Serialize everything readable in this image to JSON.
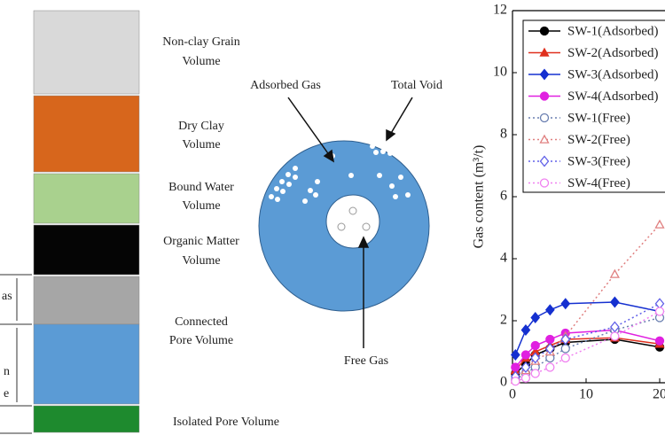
{
  "diagram": {
    "volumes": [
      [
        "Non-clay Grain",
        "Volume"
      ],
      [
        "Dry Clay",
        "Volume"
      ],
      [
        "Bound Water",
        "Volume"
      ],
      [
        "Organic Matter",
        "Volume"
      ],
      [
        "Connected",
        "Pore Volume"
      ],
      [
        "Isolated Pore Volume"
      ]
    ],
    "side_labels": [
      "as",
      "n",
      "e"
    ]
  },
  "pore_diagram": {
    "adsorbed_gas": "Adsorbed Gas",
    "total_void": "Total Void",
    "free_gas": "Free Gas"
  },
  "chart_data": {
    "type": "line",
    "y_label": "Gas content (m³/t)",
    "x": [
      0.4,
      1.8,
      3.1,
      5.1,
      7.2,
      13.9,
      20
    ],
    "xlim": [
      0,
      20
    ],
    "xticks": [
      0,
      10,
      20
    ],
    "ylim": [
      0,
      12
    ],
    "yticks": [
      0,
      2,
      4,
      6,
      8,
      10,
      12
    ],
    "legend": "top-right",
    "series": [
      {
        "name": "SW-1(Adsorbed)",
        "color": "#000000",
        "marker": "circle",
        "filled": true,
        "linestyle": "solid",
        "values": [
          0.3,
          0.6,
          0.9,
          1.1,
          1.3,
          1.4,
          1.15
        ]
      },
      {
        "name": "SW-2(Adsorbed)",
        "color": "#e0301e",
        "marker": "triangle",
        "filled": true,
        "linestyle": "solid",
        "values": [
          0.4,
          0.8,
          1.0,
          1.2,
          1.4,
          1.45,
          1.25
        ]
      },
      {
        "name": "SW-3(Adsorbed)",
        "color": "#1530d0",
        "marker": "diamond",
        "filled": true,
        "linestyle": "solid",
        "values": [
          0.9,
          1.7,
          2.1,
          2.35,
          2.55,
          2.6,
          2.3
        ]
      },
      {
        "name": "SW-4(Adsorbed)",
        "color": "#e020e0",
        "marker": "circle",
        "filled": true,
        "linestyle": "solid",
        "values": [
          0.5,
          0.9,
          1.2,
          1.4,
          1.6,
          1.7,
          1.35
        ]
      },
      {
        "name": "SW-1(Free)",
        "color": "#6a7fb0",
        "marker": "circle",
        "filled": false,
        "linestyle": "dotted",
        "values": [
          0.1,
          0.3,
          0.5,
          0.8,
          1.1,
          1.7,
          2.1
        ]
      },
      {
        "name": "SW-2(Free)",
        "color": "#e08080",
        "marker": "triangle",
        "filled": false,
        "linestyle": "dotted",
        "values": [
          0.1,
          0.4,
          0.7,
          1.0,
          1.5,
          3.5,
          5.1
        ]
      },
      {
        "name": "SW-3(Free)",
        "color": "#6060e8",
        "marker": "diamond",
        "filled": false,
        "linestyle": "dotted",
        "values": [
          0.2,
          0.5,
          0.8,
          1.1,
          1.4,
          1.8,
          2.55
        ]
      },
      {
        "name": "SW-4(Free)",
        "color": "#f080f0",
        "marker": "circle",
        "filled": false,
        "linestyle": "dotted",
        "values": [
          0.05,
          0.15,
          0.3,
          0.5,
          0.8,
          1.5,
          2.3
        ]
      }
    ]
  }
}
